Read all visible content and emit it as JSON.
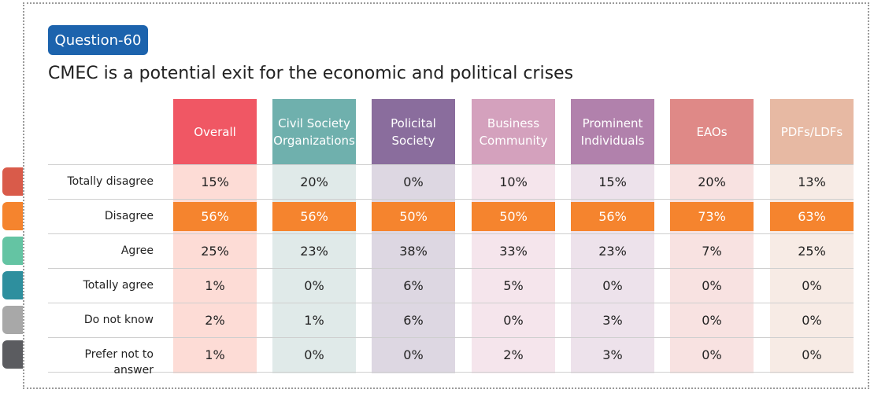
{
  "badge": "Question-60",
  "title": "CMEC is a potential exit for the economic and political crises",
  "side_tabs": [
    "#d95b4a",
    "#f5842e",
    "#64c4a3",
    "#2e8f9e",
    "#a8a8a8",
    "#5b5c60"
  ],
  "chart_data": {
    "type": "table",
    "columns": [
      {
        "label": "Overall",
        "header_color": "#f05764",
        "fill_color": "#fddcd6"
      },
      {
        "label": "Civil Society Organizations",
        "header_color": "#6fb0ad",
        "fill_color": "#e0eae9"
      },
      {
        "label": "Policital Society",
        "header_color": "#8a6d9d",
        "fill_color": "#ddd7e2"
      },
      {
        "label": "Business Community",
        "header_color": "#d4a1bd",
        "fill_color": "#f5e5ec"
      },
      {
        "label": "Prominent Individuals",
        "header_color": "#b181ac",
        "fill_color": "#ede2eb"
      },
      {
        "label": "EAOs",
        "header_color": "#df8987",
        "fill_color": "#f8e2e1"
      },
      {
        "label": "PDFs/LDFs",
        "header_color": "#e7b9a3",
        "fill_color": "#f7ebe5"
      }
    ],
    "rows": [
      {
        "label": "Totally disagree",
        "values": [
          "15%",
          "20%",
          "0%",
          "10%",
          "15%",
          "20%",
          "13%"
        ]
      },
      {
        "label": "Disagree",
        "values": [
          "56%",
          "56%",
          "50%",
          "50%",
          "56%",
          "73%",
          "63%"
        ],
        "highlight": true
      },
      {
        "label": "Agree",
        "values": [
          "25%",
          "23%",
          "38%",
          "33%",
          "23%",
          "7%",
          "25%"
        ]
      },
      {
        "label": "Totally agree",
        "values": [
          "1%",
          "0%",
          "6%",
          "5%",
          "0%",
          "0%",
          "0%"
        ]
      },
      {
        "label": "Do not know",
        "values": [
          "2%",
          "1%",
          "6%",
          "0%",
          "3%",
          "0%",
          "0%"
        ]
      },
      {
        "label": "Prefer not to answer",
        "values": [
          "1%",
          "0%",
          "0%",
          "2%",
          "3%",
          "0%",
          "0%"
        ]
      }
    ],
    "highlight_color": "#f5842e"
  }
}
